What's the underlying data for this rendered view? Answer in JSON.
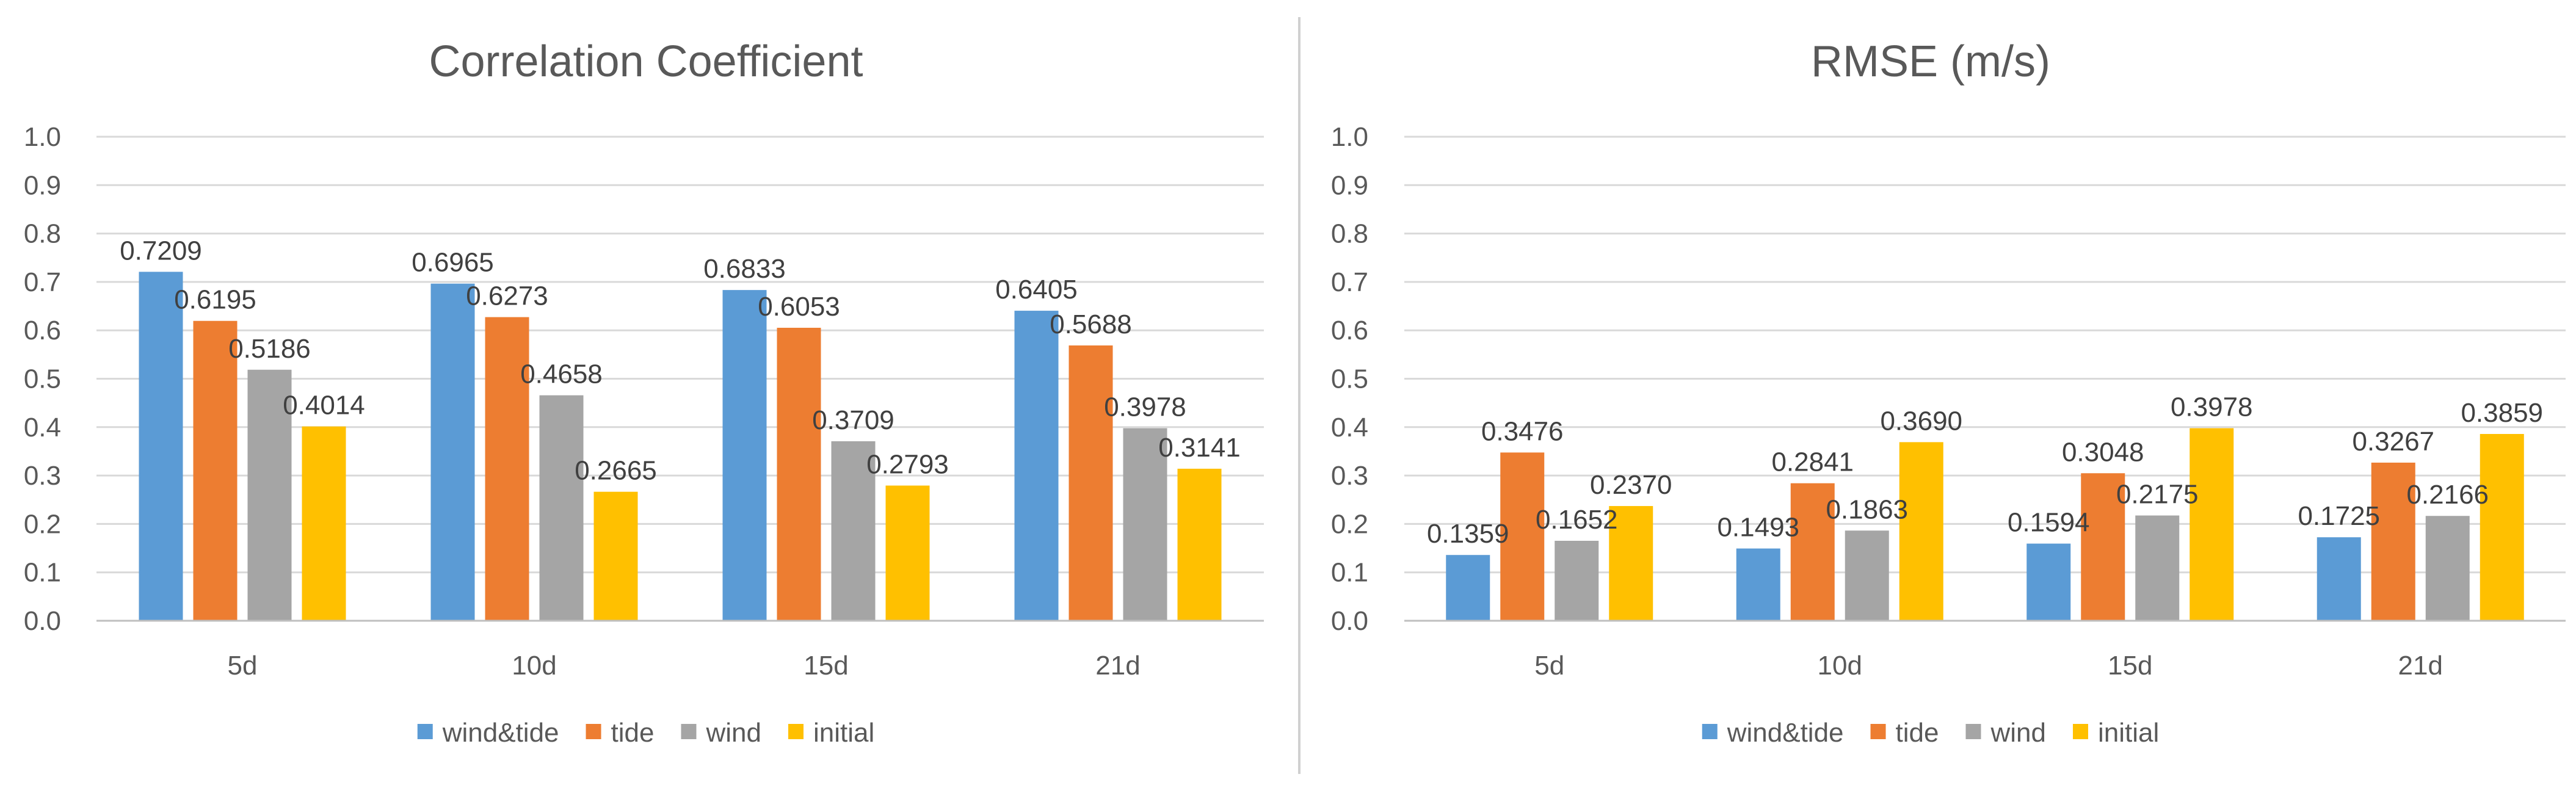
{
  "chart_data": [
    {
      "type": "bar",
      "title": "Correlation Coefficient",
      "xlabel": "",
      "ylabel": "",
      "ylim": [
        0,
        1.0
      ],
      "yticks": [
        "0.0",
        "0.1",
        "0.2",
        "0.3",
        "0.4",
        "0.5",
        "0.6",
        "0.7",
        "0.8",
        "0.9",
        "1.0"
      ],
      "categories": [
        "5d",
        "10d",
        "15d",
        "21d"
      ],
      "series": [
        {
          "name": "wind&tide",
          "color": "#5b9bd5",
          "values": [
            0.7209,
            0.6965,
            0.6833,
            0.6405
          ],
          "labels": [
            "0.7209",
            "0.6965",
            "0.6833",
            "0.6405"
          ]
        },
        {
          "name": "tide",
          "color": "#ed7d31",
          "values": [
            0.6195,
            0.6273,
            0.6053,
            0.5688
          ],
          "labels": [
            "0.6195",
            "0.6273",
            "0.6053",
            "0.5688"
          ]
        },
        {
          "name": "wind",
          "color": "#a5a5a5",
          "values": [
            0.5186,
            0.4658,
            0.3709,
            0.3978
          ],
          "labels": [
            "0.5186",
            "0.4658",
            "0.3709",
            "0.3978"
          ]
        },
        {
          "name": "initial",
          "color": "#ffc000",
          "values": [
            0.4014,
            0.2665,
            0.2793,
            0.3141
          ],
          "labels": [
            "0.4014",
            "0.2665",
            "0.2793",
            "0.3141"
          ]
        }
      ],
      "legend": "bottom",
      "grid": true
    },
    {
      "type": "bar",
      "title": "RMSE (m/s)",
      "xlabel": "",
      "ylabel": "",
      "ylim": [
        0,
        1.0
      ],
      "yticks": [
        "0.0",
        "0.1",
        "0.2",
        "0.3",
        "0.4",
        "0.5",
        "0.6",
        "0.7",
        "0.8",
        "0.9",
        "1.0"
      ],
      "categories": [
        "5d",
        "10d",
        "15d",
        "21d"
      ],
      "series": [
        {
          "name": "wind&tide",
          "color": "#5b9bd5",
          "values": [
            0.1359,
            0.1493,
            0.1594,
            0.1725
          ],
          "labels": [
            "0.1359",
            "0.1493",
            "0.1594",
            "0.1725"
          ]
        },
        {
          "name": "tide",
          "color": "#ed7d31",
          "values": [
            0.3476,
            0.2841,
            0.3048,
            0.3267
          ],
          "labels": [
            "0.3476",
            "0.2841",
            "0.3048",
            "0.3267"
          ]
        },
        {
          "name": "wind",
          "color": "#a5a5a5",
          "values": [
            0.1652,
            0.1863,
            0.2175,
            0.2166
          ],
          "labels": [
            "0.1652",
            "0.1863",
            "0.2175",
            "0.2166"
          ]
        },
        {
          "name": "initial",
          "color": "#ffc000",
          "values": [
            0.237,
            0.369,
            0.3978,
            0.3859
          ],
          "labels": [
            "0.2370",
            "0.3690",
            "0.3978",
            "0.3859"
          ]
        }
      ],
      "legend": "bottom",
      "grid": true
    }
  ]
}
